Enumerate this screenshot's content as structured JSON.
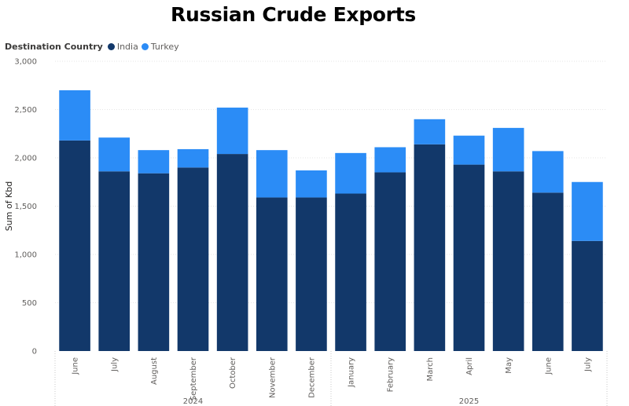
{
  "chart_data": {
    "type": "bar",
    "stacked": true,
    "title": "Russian Crude Exports",
    "legend": {
      "title": "Destination Country",
      "placement": "top-left"
    },
    "xlabel": "",
    "ylabel": "Sum of Kbd",
    "ylim": [
      0,
      3000
    ],
    "yticks": [
      "0",
      "500",
      "1,000",
      "1,500",
      "2,000",
      "2,500",
      "3,000"
    ],
    "ytick_values": [
      0,
      500,
      1000,
      1500,
      2000,
      2500,
      3000
    ],
    "grid": true,
    "categories": [
      "June",
      "July",
      "August",
      "September",
      "October",
      "November",
      "December",
      "January",
      "February",
      "March",
      "April",
      "May",
      "June",
      "July"
    ],
    "year_groups": [
      {
        "label": "2024",
        "count": 7
      },
      {
        "label": "2025",
        "count": 7
      }
    ],
    "series": [
      {
        "name": "India",
        "color": "#12386a",
        "values": [
          2180,
          1860,
          1840,
          1900,
          2040,
          1590,
          1590,
          1630,
          1850,
          2140,
          1930,
          1860,
          1640,
          1140
        ]
      },
      {
        "name": "Turkey",
        "color": "#2b8cf6",
        "values": [
          520,
          350,
          240,
          190,
          480,
          490,
          280,
          420,
          260,
          260,
          300,
          450,
          430,
          610
        ]
      }
    ]
  }
}
